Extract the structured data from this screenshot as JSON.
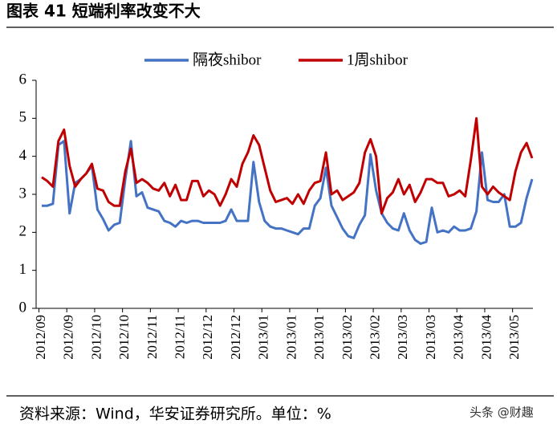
{
  "chart_data": {
    "type": "line",
    "title": "图表 41  短端利率改变不大",
    "source": "资料来源：Wind，华安证券研究所。单位：%",
    "watermark": "头条 @财趣",
    "categories": [
      "2012/09",
      null,
      null,
      null,
      null,
      "2012/09",
      null,
      null,
      null,
      null,
      "2012/10",
      null,
      null,
      null,
      null,
      "2012/10",
      null,
      null,
      null,
      null,
      "2012/11",
      null,
      null,
      null,
      null,
      "2012/11",
      null,
      null,
      null,
      null,
      "2012/12",
      null,
      null,
      null,
      null,
      "2012/12",
      null,
      null,
      null,
      null,
      "2013/01",
      null,
      null,
      null,
      null,
      "2013/01",
      null,
      null,
      null,
      null,
      "2013/01",
      null,
      null,
      null,
      null,
      "2013/02",
      null,
      null,
      null,
      null,
      "2013/02",
      null,
      null,
      null,
      null,
      "2013/03",
      null,
      null,
      null,
      null,
      "2013/03",
      null,
      null,
      null,
      null,
      "2013/04",
      null,
      null,
      null,
      null,
      "2013/04",
      null,
      null,
      null,
      null,
      "2013/05",
      null,
      null,
      null
    ],
    "series": [
      {
        "name": "隔夜shibor",
        "color": "#4472c4",
        "values": [
          2.7,
          2.7,
          2.75,
          4.3,
          4.4,
          2.5,
          3.3,
          3.4,
          3.55,
          3.75,
          2.6,
          2.35,
          2.05,
          2.2,
          2.25,
          3.4,
          4.4,
          2.95,
          3.05,
          2.65,
          2.6,
          2.55,
          2.3,
          2.25,
          2.15,
          2.3,
          2.25,
          2.3,
          2.3,
          2.25,
          2.25,
          2.25,
          2.25,
          2.3,
          2.6,
          2.3,
          2.3,
          2.3,
          3.85,
          2.8,
          2.3,
          2.15,
          2.1,
          2.1,
          2.05,
          2.0,
          1.95,
          2.1,
          2.1,
          2.7,
          2.9,
          3.7,
          2.7,
          2.4,
          2.1,
          1.9,
          1.85,
          2.2,
          2.45,
          4.05,
          3.1,
          2.5,
          2.25,
          2.1,
          2.05,
          2.5,
          2.05,
          1.8,
          1.7,
          1.75,
          2.65,
          2.0,
          2.05,
          2.0,
          2.15,
          2.05,
          2.05,
          2.1,
          2.55,
          4.1,
          2.85,
          2.8,
          2.8,
          3.0,
          2.15,
          2.15,
          2.25,
          2.9,
          3.4
        ]
      },
      {
        "name": "1周shibor",
        "color": "#c00000",
        "values": [
          3.45,
          3.35,
          3.2,
          4.4,
          4.7,
          3.75,
          3.2,
          3.4,
          3.55,
          3.8,
          3.15,
          3.1,
          2.8,
          2.7,
          2.7,
          3.6,
          4.2,
          3.3,
          3.4,
          3.3,
          3.15,
          3.1,
          3.3,
          2.95,
          3.25,
          2.85,
          2.85,
          3.35,
          3.35,
          2.95,
          3.1,
          3.0,
          2.7,
          3.0,
          3.4,
          3.2,
          3.8,
          4.1,
          4.55,
          4.3,
          3.7,
          3.1,
          2.8,
          2.85,
          2.9,
          2.75,
          3.0,
          2.75,
          3.1,
          3.3,
          3.35,
          4.1,
          3.0,
          3.1,
          2.85,
          2.95,
          3.05,
          3.3,
          4.1,
          4.45,
          4.0,
          2.5,
          2.9,
          3.05,
          3.4,
          3.0,
          3.25,
          2.8,
          3.05,
          3.4,
          3.4,
          3.3,
          3.3,
          2.95,
          3.0,
          3.1,
          2.95,
          3.9,
          5.0,
          3.2,
          3.0,
          3.2,
          3.05,
          2.95,
          2.85,
          3.6,
          4.1,
          4.35,
          3.95
        ]
      }
    ],
    "ylim": [
      0,
      6
    ],
    "yticks": [
      0,
      1,
      2,
      3,
      4,
      5,
      6
    ],
    "grid": false
  }
}
